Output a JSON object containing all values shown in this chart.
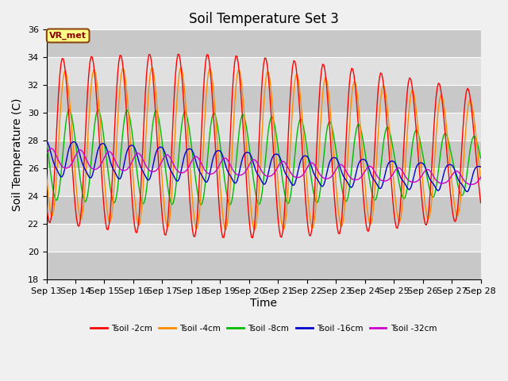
{
  "title": "Soil Temperature Set 3",
  "xlabel": "Time",
  "ylabel": "Soil Temperature (C)",
  "ylim": [
    18,
    36
  ],
  "yticks": [
    18,
    20,
    22,
    24,
    26,
    28,
    30,
    32,
    34,
    36
  ],
  "x_tick_labels": [
    "Sep 13",
    "Sep 14",
    "Sep 15",
    "Sep 16",
    "Sep 17",
    "Sep 18",
    "Sep 19",
    "Sep 20",
    "Sep 21",
    "Sep 22",
    "Sep 23",
    "Sep 24",
    "Sep 25",
    "Sep 26",
    "Sep 27",
    "Sep 28"
  ],
  "annotation_text": "VR_met",
  "legend_labels": [
    "Tsoil -2cm",
    "Tsoil -4cm",
    "Tsoil -8cm",
    "Tsoil -16cm",
    "Tsoil -32cm"
  ],
  "colors": {
    "Tsoil_2cm": "#ff0000",
    "Tsoil_4cm": "#ff8c00",
    "Tsoil_8cm": "#00bb00",
    "Tsoil_16cm": "#0000cc",
    "Tsoil_32cm": "#cc00cc"
  },
  "ax_facecolor": "#d8d8d8",
  "fig_facecolor": "#f0f0f0",
  "band_colors": [
    "#c8c8c8",
    "#e0e0e0"
  ],
  "title_fontsize": 12,
  "axis_label_fontsize": 10,
  "tick_fontsize": 8
}
